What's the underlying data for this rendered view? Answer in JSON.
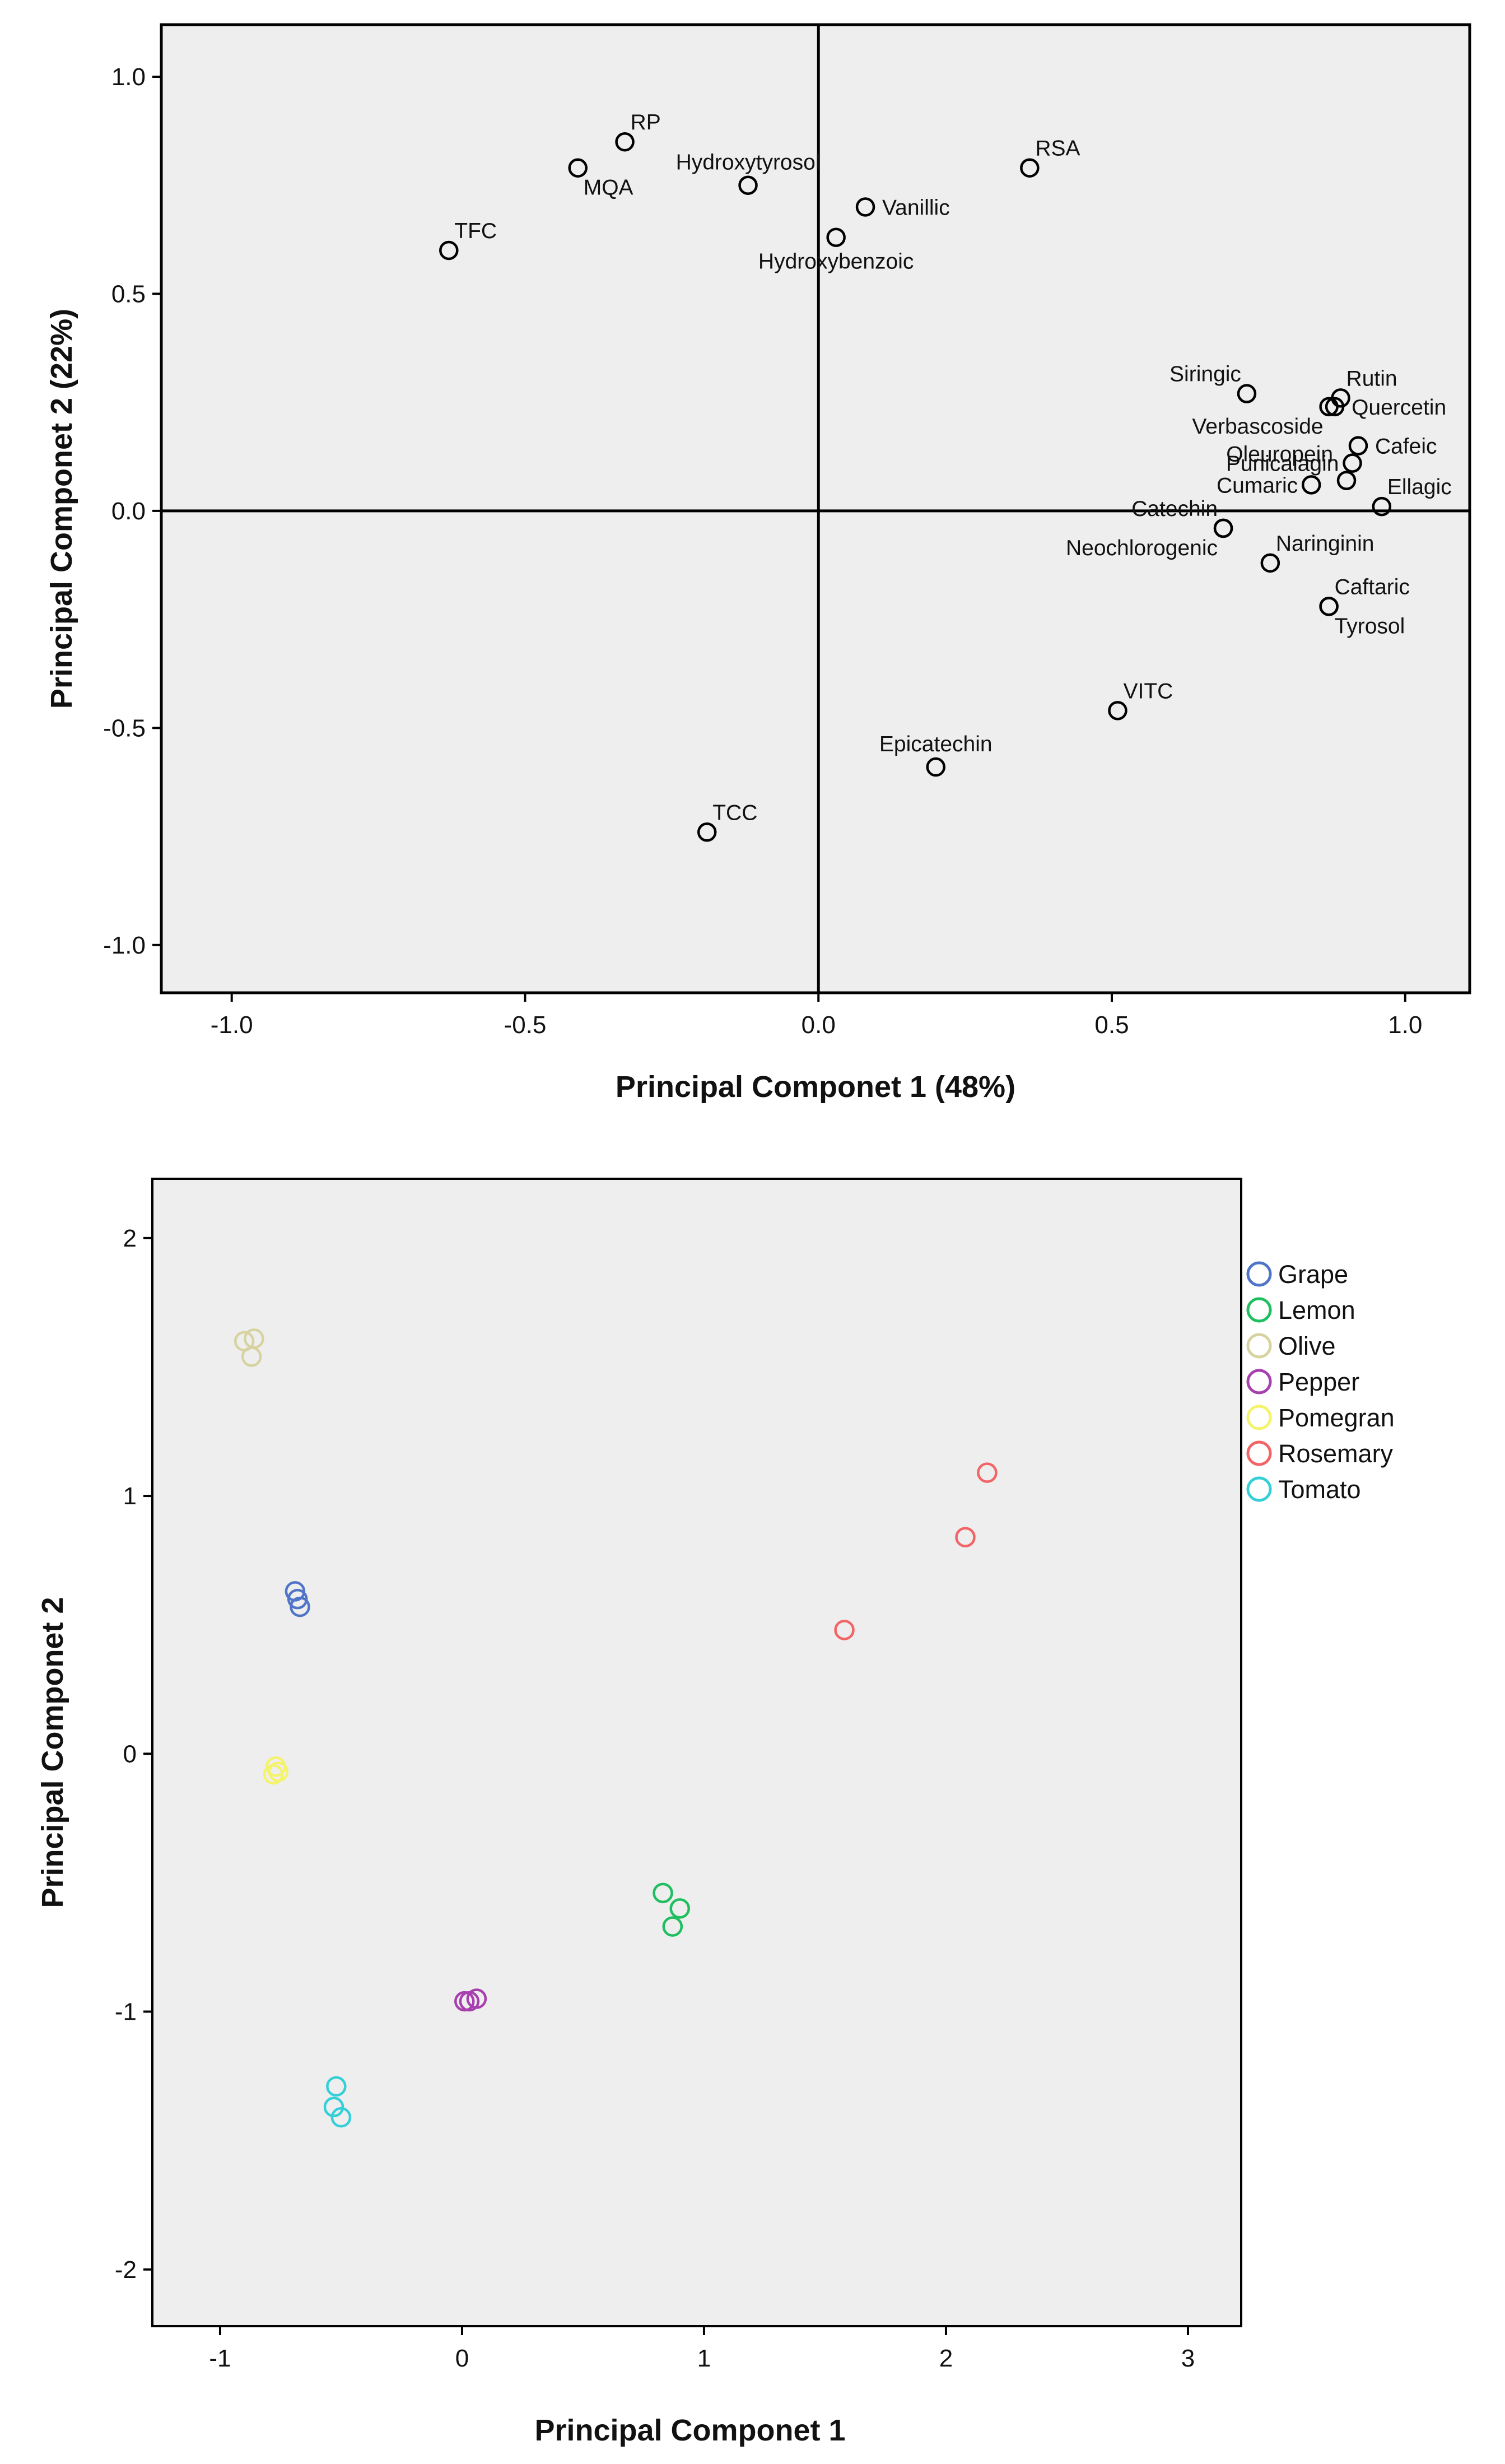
{
  "chart_data": [
    {
      "type": "scatter",
      "title": "",
      "xlabel": "Principal Componet 1 (48%)",
      "ylabel": "Principal Componet 2 (22%)",
      "xlim": [
        -1.12,
        1.11
      ],
      "ylim": [
        -1.11,
        1.12
      ],
      "xticks": [
        -1.0,
        -0.5,
        0.0,
        0.5,
        1.0
      ],
      "yticks": [
        -1.0,
        -0.5,
        0.0,
        0.5,
        1.0
      ],
      "xtick_labels": [
        "-1.0",
        "-0.5",
        "0.0",
        "0.5",
        "1.0"
      ],
      "ytick_labels": [
        "-1.0",
        "-0.5",
        "0.0",
        "0.5",
        "1.0"
      ],
      "reference_lines": {
        "x": 0,
        "y": 0
      },
      "grid": false,
      "points": [
        {
          "label": "RP",
          "x": -0.33,
          "y": 0.85,
          "anchor": "ne"
        },
        {
          "label": "MQA",
          "x": -0.41,
          "y": 0.79,
          "anchor": "se"
        },
        {
          "label": "Hydroxytyrosol",
          "x": -0.12,
          "y": 0.75,
          "anchor": "n"
        },
        {
          "label": "TFC",
          "x": -0.63,
          "y": 0.6,
          "anchor": "ne"
        },
        {
          "label": "RSA",
          "x": 0.36,
          "y": 0.79,
          "anchor": "ne"
        },
        {
          "label": "Vanillic",
          "x": 0.08,
          "y": 0.7,
          "anchor": "e"
        },
        {
          "label": "Hydroxybenzoic",
          "x": 0.03,
          "y": 0.63,
          "anchor": "s"
        },
        {
          "label": "Siringic",
          "x": 0.73,
          "y": 0.27,
          "anchor": "nw"
        },
        {
          "label": "Rutin",
          "x": 0.89,
          "y": 0.26,
          "anchor": "ne"
        },
        {
          "label": "Quercetin",
          "x": 0.88,
          "y": 0.24,
          "anchor": "e"
        },
        {
          "label": "Verbascoside",
          "x": 0.87,
          "y": 0.24,
          "anchor": "sw"
        },
        {
          "label": "Cafeic",
          "x": 0.92,
          "y": 0.15,
          "anchor": "e"
        },
        {
          "label": "Punicalagin",
          "x": 0.91,
          "y": 0.11,
          "anchor": "w"
        },
        {
          "label": "Oleuropein",
          "x": 0.9,
          "y": 0.07,
          "anchor": "nw-far"
        },
        {
          "label": "Ellagic",
          "x": 0.96,
          "y": 0.01,
          "anchor": "ne"
        },
        {
          "label": "Cumaric",
          "x": 0.84,
          "y": 0.06,
          "anchor": "w"
        },
        {
          "label": "Catechin",
          "x": 0.69,
          "y": -0.04,
          "anchor": "nw"
        },
        {
          "label": "Naringinin",
          "x": 0.77,
          "y": -0.12,
          "anchor": "ne"
        },
        {
          "label": "Neochlorogenic",
          "x": 0.69,
          "y": -0.04,
          "anchor": "sw"
        },
        {
          "label": "Caftaric",
          "x": 0.87,
          "y": -0.22,
          "anchor": "ne"
        },
        {
          "label": "Tyrosol",
          "x": 0.87,
          "y": -0.22,
          "anchor": "se"
        },
        {
          "label": "VITC",
          "x": 0.51,
          "y": -0.46,
          "anchor": "ne"
        },
        {
          "label": "Epicatechin",
          "x": 0.2,
          "y": -0.59,
          "anchor": "n"
        },
        {
          "label": "TCC",
          "x": -0.19,
          "y": -0.74,
          "anchor": "ne"
        }
      ]
    },
    {
      "type": "scatter",
      "title": "",
      "xlabel": "Principal Componet 1",
      "ylabel": "Principal Componet 2",
      "xlim": [
        -1.28,
        3.22
      ],
      "ylim": [
        -2.22,
        2.23
      ],
      "xticks": [
        -1,
        0,
        1,
        2,
        3
      ],
      "yticks": [
        -2,
        -1,
        0,
        1,
        2
      ],
      "xtick_labels": [
        "-1",
        "0",
        "1",
        "2",
        "3"
      ],
      "ytick_labels": [
        "-2",
        "-1",
        "0",
        "1",
        "2"
      ],
      "grid": false,
      "legend_position": "right",
      "series": [
        {
          "name": "Grape",
          "color": "#4f74c8",
          "points": [
            [
              -0.69,
              0.63
            ],
            [
              -0.68,
              0.6
            ],
            [
              -0.67,
              0.57
            ]
          ]
        },
        {
          "name": "Lemon",
          "color": "#1fbf60",
          "points": [
            [
              0.83,
              -0.54
            ],
            [
              0.9,
              -0.6
            ],
            [
              0.87,
              -0.67
            ]
          ]
        },
        {
          "name": "Olive",
          "color": "#d7d3a0",
          "points": [
            [
              -0.9,
              1.6
            ],
            [
              -0.86,
              1.61
            ],
            [
              -0.87,
              1.54
            ]
          ]
        },
        {
          "name": "Pepper",
          "color": "#a73fae",
          "points": [
            [
              0.01,
              -0.96
            ],
            [
              0.03,
              -0.96
            ],
            [
              0.06,
              -0.95
            ]
          ]
        },
        {
          "name": "Pomegran",
          "color": "#f4f36a",
          "points": [
            [
              -0.77,
              -0.05
            ],
            [
              -0.78,
              -0.08
            ],
            [
              -0.76,
              -0.07
            ]
          ]
        },
        {
          "name": "Rosemary",
          "color": "#f26465",
          "points": [
            [
              2.17,
              1.09
            ],
            [
              2.08,
              0.84
            ],
            [
              1.58,
              0.48
            ]
          ]
        },
        {
          "name": "Tomato",
          "color": "#34cfd8",
          "points": [
            [
              -0.52,
              -1.29
            ],
            [
              -0.53,
              -1.37
            ],
            [
              -0.5,
              -1.41
            ]
          ]
        }
      ]
    }
  ]
}
